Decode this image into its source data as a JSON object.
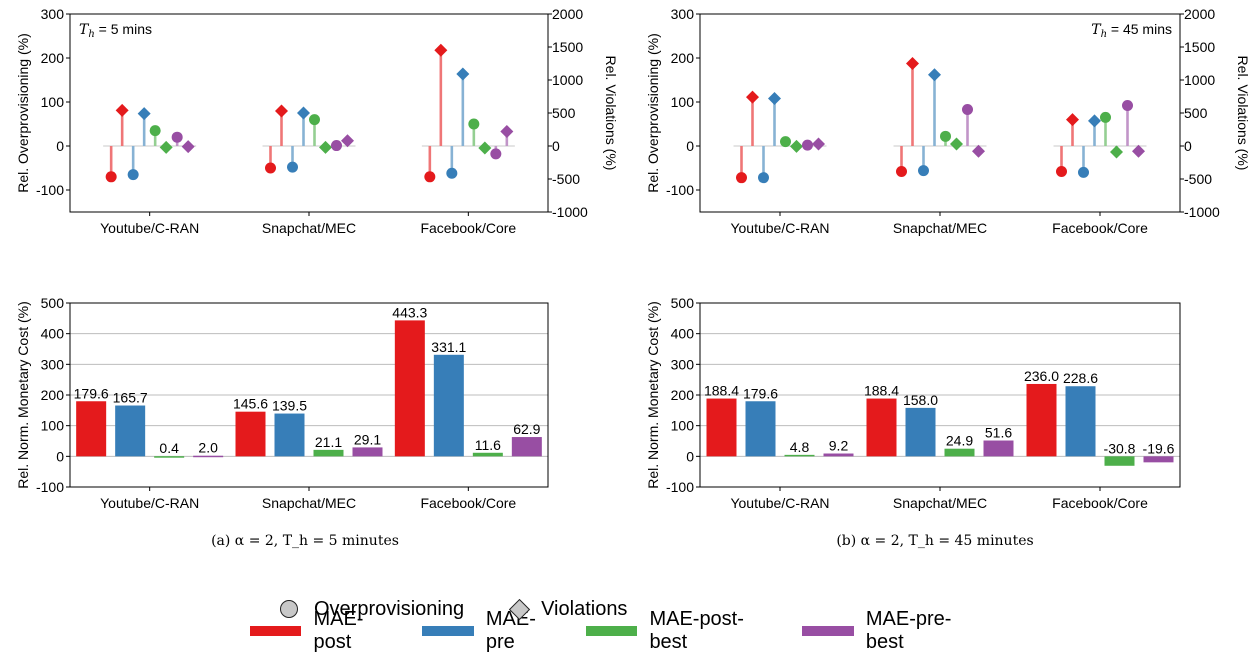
{
  "colors": {
    "MAE-post": "#e41a1c",
    "MAE-pre": "#377eb8",
    "MAE-post-best": "#4daf4a",
    "MAE-pre-best": "#984ea3"
  },
  "captions": [
    "(a) α = 2, T_h = 5 minutes",
    "(b) α = 2, T_h = 45 minutes"
  ],
  "legend": {
    "markers": [
      "Overprovisioning",
      "Violations"
    ],
    "series": [
      "MAE-post",
      "MAE-pre",
      "MAE-post-best",
      "MAE-pre-best"
    ]
  },
  "chart_data": [
    {
      "type": "scatter",
      "subtype": "lollipop",
      "annotation": "T_h = 5 mins",
      "categories": [
        "Youtube/C-RAN",
        "Snapchat/MEC",
        "Facebook/Core"
      ],
      "ylabel": "Rel. Overprovisioning (%)",
      "ylabel_right": "Rel. Violations (%)",
      "ylim": [
        -150,
        300
      ],
      "yticks": [
        -100,
        0,
        100,
        200,
        300
      ],
      "ylim_right": [
        -1000,
        2000
      ],
      "yticks_right": [
        -1000,
        -500,
        0,
        500,
        1000,
        1500,
        2000
      ],
      "grid": false,
      "series": [
        {
          "name": "MAE-post",
          "overprovisioning": [
            -70,
            -50,
            -70
          ],
          "violations": [
            540,
            530,
            1450
          ]
        },
        {
          "name": "MAE-pre",
          "overprovisioning": [
            -65,
            -48,
            -62
          ],
          "violations": [
            490,
            500,
            1090
          ]
        },
        {
          "name": "MAE-post-best",
          "overprovisioning": [
            35,
            60,
            50
          ],
          "violations": [
            -20,
            -20,
            -30
          ]
        },
        {
          "name": "MAE-pre-best",
          "overprovisioning": [
            20,
            1,
            -18
          ],
          "violations": [
            -10,
            80,
            220
          ]
        }
      ]
    },
    {
      "type": "scatter",
      "subtype": "lollipop",
      "annotation": "T_h = 45 mins",
      "categories": [
        "Youtube/C-RAN",
        "Snapchat/MEC",
        "Facebook/Core"
      ],
      "ylabel": "Rel. Overprovisioning (%)",
      "ylabel_right": "Rel. Violations (%)",
      "ylim": [
        -150,
        300
      ],
      "yticks": [
        -100,
        0,
        100,
        200,
        300
      ],
      "ylim_right": [
        -1000,
        2000
      ],
      "yticks_right": [
        -1000,
        -500,
        0,
        500,
        1000,
        1500,
        2000
      ],
      "grid": false,
      "series": [
        {
          "name": "MAE-post",
          "overprovisioning": [
            -72,
            -58,
            -58
          ],
          "violations": [
            740,
            1250,
            400
          ]
        },
        {
          "name": "MAE-pre",
          "overprovisioning": [
            -72,
            -56,
            -60
          ],
          "violations": [
            720,
            1080,
            380
          ]
        },
        {
          "name": "MAE-post-best",
          "overprovisioning": [
            10,
            22,
            65
          ],
          "violations": [
            -5,
            30,
            -90
          ]
        },
        {
          "name": "MAE-pre-best",
          "overprovisioning": [
            2,
            83,
            92
          ],
          "violations": [
            30,
            -80,
            -80
          ]
        }
      ]
    },
    {
      "type": "bar",
      "categories": [
        "Youtube/C-RAN",
        "Snapchat/MEC",
        "Facebook/Core"
      ],
      "ylabel": "Rel. Norm. Monetary Cost (%)",
      "ylim": [
        -100,
        500
      ],
      "yticks": [
        -100,
        0,
        100,
        200,
        300,
        400,
        500
      ],
      "grid": true,
      "series": [
        {
          "name": "MAE-post",
          "values": [
            179.6,
            145.6,
            443.3
          ]
        },
        {
          "name": "MAE-pre",
          "values": [
            165.7,
            139.5,
            331.1
          ]
        },
        {
          "name": "MAE-post-best",
          "values": [
            0.4,
            21.1,
            11.6
          ]
        },
        {
          "name": "MAE-pre-best",
          "values": [
            2.0,
            29.1,
            62.9
          ]
        }
      ]
    },
    {
      "type": "bar",
      "categories": [
        "Youtube/C-RAN",
        "Snapchat/MEC",
        "Facebook/Core"
      ],
      "ylabel": "Rel. Norm. Monetary Cost (%)",
      "ylim": [
        -100,
        500
      ],
      "yticks": [
        -100,
        0,
        100,
        200,
        300,
        400,
        500
      ],
      "grid": true,
      "series": [
        {
          "name": "MAE-post",
          "values": [
            188.4,
            188.4,
            236.0
          ]
        },
        {
          "name": "MAE-pre",
          "values": [
            179.6,
            158.0,
            228.6
          ]
        },
        {
          "name": "MAE-post-best",
          "values": [
            4.8,
            24.9,
            -30.8
          ]
        },
        {
          "name": "MAE-pre-best",
          "values": [
            9.2,
            51.6,
            -19.6
          ]
        }
      ]
    }
  ]
}
